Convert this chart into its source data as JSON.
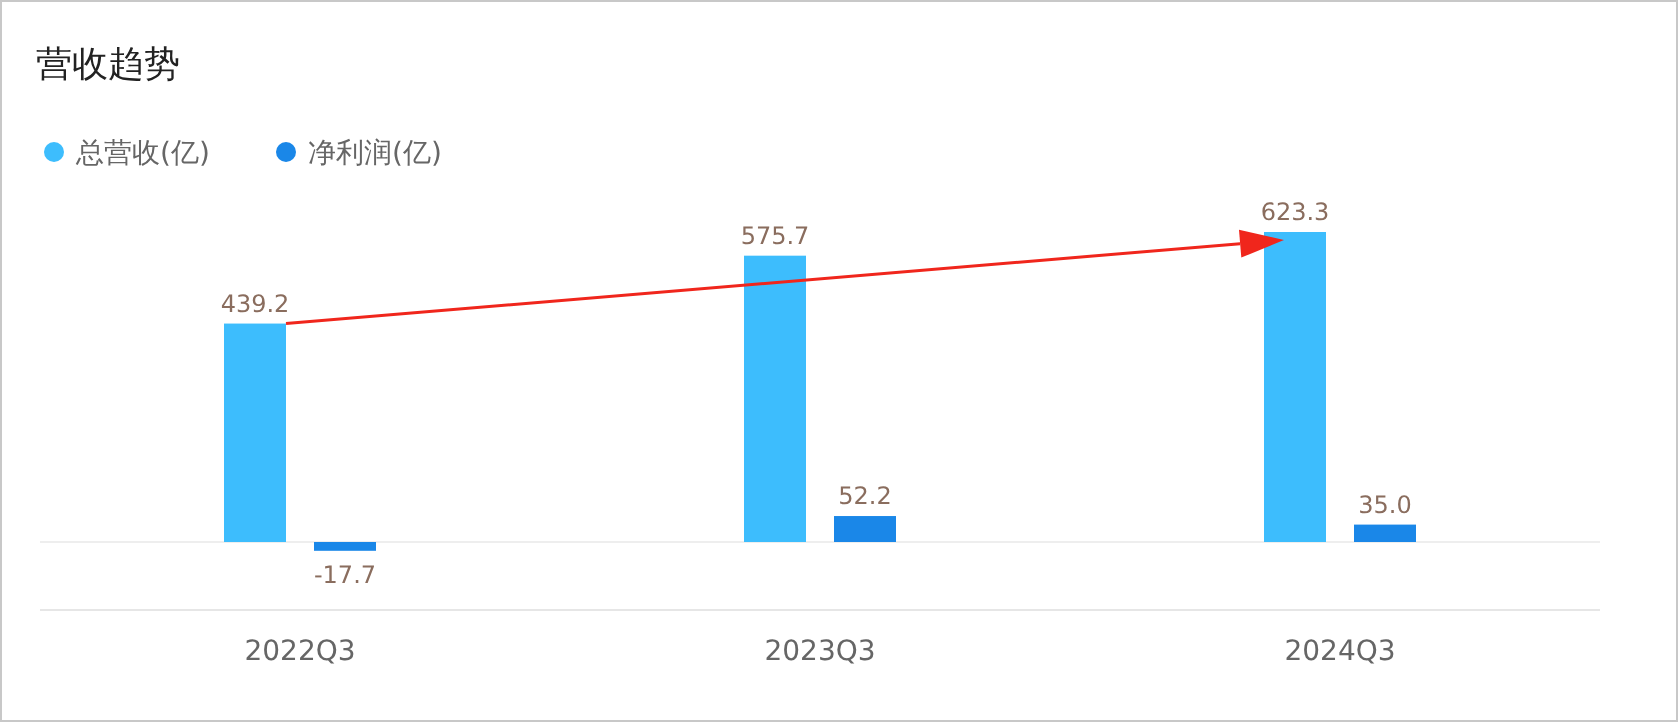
{
  "chart_data": {
    "type": "bar",
    "title": "营收趋势",
    "categories": [
      "2022Q3",
      "2023Q3",
      "2024Q3"
    ],
    "series": [
      {
        "name": "总营收(亿)",
        "color": "#3dbdfd",
        "values": [
          439.2,
          575.7,
          623.3
        ],
        "value_labels": [
          "439.2",
          "575.7",
          "623.3"
        ]
      },
      {
        "name": "净利润(亿)",
        "color": "#1a87e8",
        "values": [
          -17.7,
          52.2,
          35.0
        ],
        "value_labels": [
          "-17.7",
          "52.2",
          "35.0"
        ]
      }
    ],
    "legend": "top left"
  }
}
